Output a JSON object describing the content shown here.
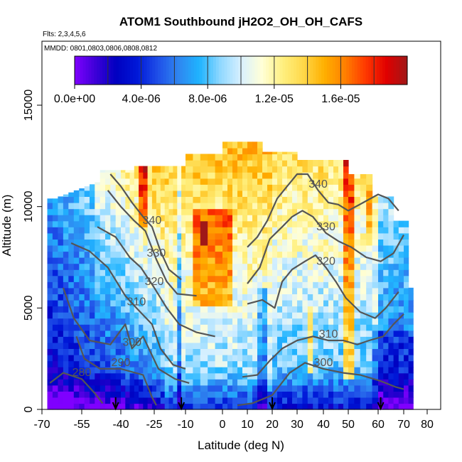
{
  "chart_data": {
    "type": "heatmap",
    "title": "ATOM1 Southbound jH2O2_OH_OH_CAFS",
    "subtitle_flights": "Flts: 2,3,4,5,6",
    "subtitle_dates": "MMDD: 0801,0803,0806,0808,0812",
    "xlabel": "Latitude (deg N)",
    "ylabel": "Altitude (m)",
    "xlim": [
      -70,
      80
    ],
    "ylim": [
      0,
      17500
    ],
    "x_ticks": [
      "-70",
      "-55",
      "-40",
      "-25",
      "-10",
      "0",
      "10",
      "20",
      "30",
      "40",
      "50",
      "60",
      "70",
      "80"
    ],
    "x_tick_values": [
      -70,
      -55,
      -40,
      -25,
      -10,
      0,
      10,
      20,
      30,
      40,
      50,
      60,
      70,
      80
    ],
    "y_ticks": [
      "0",
      "5000",
      "10000",
      "15000"
    ],
    "y_tick_values": [
      0,
      5000,
      10000,
      15000
    ],
    "colorbar": {
      "min": 0,
      "max": 2e-05,
      "tick_labels": [
        "0.0e+00",
        "4.0e-06",
        "8.0e-06",
        "1.2e-05",
        "1.6e-05"
      ],
      "tick_values": [
        0,
        4e-06,
        8e-06,
        1.2e-05,
        1.6e-05
      ],
      "colors": [
        "#7f00ff",
        "#3d00d8",
        "#0000c0",
        "#0018d8",
        "#1f4fe8",
        "#2f86f0",
        "#1fb4ff",
        "#8fd8ff",
        "#d8f0ff",
        "#ffffd8",
        "#fff080",
        "#ffd84a",
        "#ffb000",
        "#ff8000",
        "#ff3800",
        "#e00000",
        "#a01818"
      ]
    },
    "contours": [
      {
        "label": "280",
        "points": [
          [
            -67,
            1300
          ],
          [
            -62,
            1800
          ],
          [
            -55,
            1500
          ],
          [
            -50,
            800
          ],
          [
            -47,
            300
          ]
        ]
      },
      {
        "label": "290",
        "points": [
          [
            -57,
            3600
          ],
          [
            -54,
            2500
          ],
          [
            -48,
            2000
          ],
          [
            -40,
            2000
          ],
          [
            -30,
            1700
          ],
          [
            -26,
            600
          ],
          [
            -24,
            200
          ]
        ]
      },
      {
        "label": "300",
        "points": [
          [
            -62,
            6000
          ],
          [
            -58,
            4500
          ],
          [
            -52,
            3400
          ],
          [
            -44,
            3200
          ],
          [
            -38,
            4200
          ],
          [
            -35,
            3000
          ],
          [
            -30,
            3600
          ],
          [
            -23,
            2000
          ],
          [
            -15,
            1500
          ],
          [
            -9,
            1300
          ]
        ]
      },
      {
        "label": "310",
        "points": [
          [
            -59,
            8200
          ],
          [
            -52,
            7800
          ],
          [
            -45,
            7000
          ],
          [
            -38,
            5600
          ],
          [
            -33,
            5000
          ],
          [
            -26,
            4200
          ],
          [
            -22,
            3000
          ],
          [
            -16,
            2200
          ],
          [
            -10,
            2000
          ]
        ]
      },
      {
        "label": "320",
        "points": [
          [
            -49,
            9000
          ],
          [
            -42,
            8500
          ],
          [
            -36,
            7500
          ],
          [
            -31,
            7000
          ],
          [
            -25,
            6000
          ],
          [
            -19,
            5000
          ],
          [
            -13,
            4200
          ],
          [
            -7,
            3800
          ],
          [
            -2,
            3600
          ]
        ]
      },
      {
        "label": "330",
        "points": [
          [
            -45,
            10800
          ],
          [
            -40,
            10000
          ],
          [
            -34,
            9300
          ],
          [
            -29,
            8800
          ],
          [
            -24,
            7400
          ],
          [
            -19,
            6300
          ],
          [
            -14,
            5700
          ],
          [
            -7,
            5600
          ]
        ]
      },
      {
        "label": "340",
        "points": [
          [
            -44,
            11600
          ],
          [
            -40,
            11000
          ],
          [
            -35,
            10200
          ],
          [
            -30,
            9500
          ],
          [
            -26,
            9000
          ],
          [
            -22,
            7800
          ],
          [
            -18,
            6900
          ],
          [
            -12,
            6400
          ]
        ]
      },
      {
        "label": "300",
        "points": [
          [
            6,
            200
          ],
          [
            12,
            300
          ],
          [
            20,
            700
          ],
          [
            27,
            1800
          ],
          [
            33,
            2300
          ],
          [
            40,
            2000
          ],
          [
            48,
            1800
          ],
          [
            54,
            1700
          ],
          [
            61,
            1400
          ],
          [
            67,
            1100
          ],
          [
            70,
            1000
          ]
        ]
      },
      {
        "label": "310",
        "points": [
          [
            8,
            1600
          ],
          [
            14,
            1700
          ],
          [
            19,
            2400
          ],
          [
            24,
            3000
          ],
          [
            30,
            3400
          ],
          [
            36,
            3600
          ],
          [
            42,
            3400
          ],
          [
            48,
            3400
          ],
          [
            53,
            3200
          ],
          [
            57,
            3400
          ],
          [
            62,
            3600
          ],
          [
            66,
            4200
          ],
          [
            70,
            4700
          ]
        ]
      },
      {
        "label": "320",
        "points": [
          [
            10,
            5200
          ],
          [
            16,
            5400
          ],
          [
            21,
            5000
          ],
          [
            24,
            6300
          ],
          [
            28,
            6900
          ],
          [
            33,
            7300
          ],
          [
            37,
            7600
          ],
          [
            41,
            7000
          ],
          [
            45,
            6300
          ],
          [
            49,
            5500
          ],
          [
            54,
            4800
          ],
          [
            59,
            4500
          ],
          [
            63,
            5000
          ],
          [
            68,
            5800
          ]
        ]
      },
      {
        "label": "330",
        "points": [
          [
            10,
            6200
          ],
          [
            15,
            7000
          ],
          [
            19,
            8400
          ],
          [
            24,
            9000
          ],
          [
            28,
            9500
          ],
          [
            32,
            9800
          ],
          [
            36,
            9500
          ],
          [
            41,
            8700
          ],
          [
            46,
            8300
          ],
          [
            51,
            8000
          ],
          [
            56,
            7500
          ],
          [
            61,
            7300
          ],
          [
            66,
            7700
          ],
          [
            70,
            8600
          ]
        ]
      },
      {
        "label": "340",
        "points": [
          [
            10,
            8000
          ],
          [
            14,
            8500
          ],
          [
            18,
            9300
          ],
          [
            22,
            10400
          ],
          [
            26,
            11000
          ],
          [
            30,
            11600
          ],
          [
            34,
            11600
          ],
          [
            38,
            10800
          ],
          [
            42,
            10200
          ],
          [
            46,
            10100
          ],
          [
            50,
            9800
          ],
          [
            55,
            10200
          ],
          [
            60,
            10600
          ],
          [
            64,
            10400
          ],
          [
            68,
            9800
          ]
        ]
      }
    ],
    "arrows_latitude": [
      -42,
      -12,
      20,
      61
    ]
  }
}
